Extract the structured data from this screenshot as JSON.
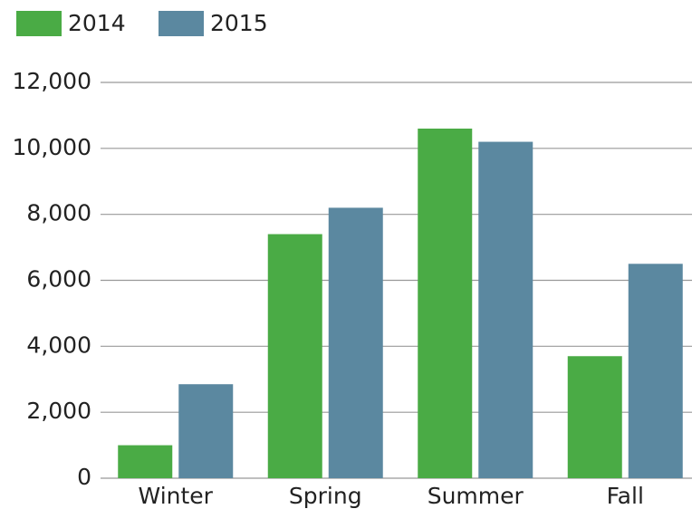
{
  "chart_data": {
    "type": "bar",
    "categories": [
      "Winter",
      "Spring",
      "Summer",
      "Fall"
    ],
    "series": [
      {
        "name": "2014",
        "color": "#4aab45",
        "values": [
          1000,
          7400,
          10600,
          3700
        ]
      },
      {
        "name": "2015",
        "color": "#5b88a0",
        "values": [
          2850,
          8200,
          10200,
          6500
        ]
      }
    ],
    "ylim": [
      0,
      12000
    ],
    "yticks": [
      0,
      {
        "value": 2000,
        "label": "2,000"
      },
      {
        "value": 4000,
        "label": "4,000"
      },
      {
        "value": 6000,
        "label": "6,000"
      },
      {
        "value": 8000,
        "label": "8,000"
      },
      {
        "value": 10000,
        "label": "10,000"
      },
      {
        "value": 12000,
        "label": "12,000"
      }
    ],
    "grid": true,
    "legend": "top-left"
  }
}
